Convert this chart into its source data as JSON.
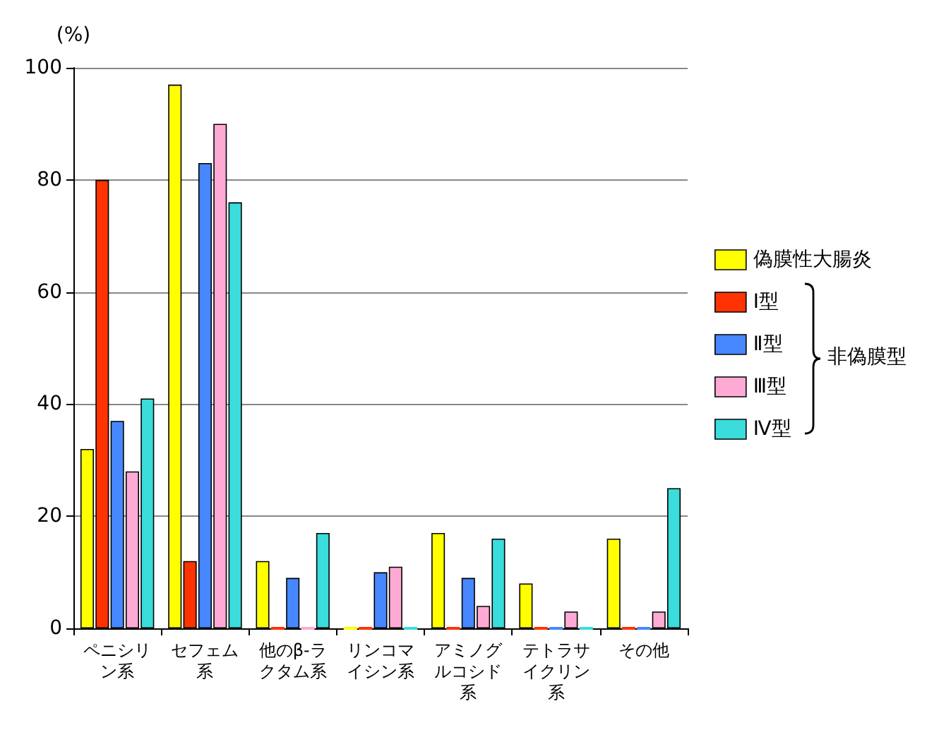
{
  "chart_data": {
    "type": "bar",
    "ylabel": "(%)",
    "categories": [
      "ペニシリン系",
      "セフェム系",
      "他のβ-ラクタム系",
      "リンコマイシン系",
      "アミノグルコシド系",
      "テトラサイクリン系",
      "その他"
    ],
    "series": [
      {
        "name": "偽膜性大腸炎",
        "color": "#ffff00",
        "values": [
          32,
          97,
          12,
          0,
          17,
          8,
          16
        ]
      },
      {
        "name": "Ⅰ型",
        "color": "#ff3300",
        "values": [
          80,
          12,
          0,
          0,
          0,
          0,
          0
        ]
      },
      {
        "name": "Ⅱ型",
        "color": "#4787ff",
        "values": [
          37,
          83,
          9,
          10,
          9,
          0,
          0
        ]
      },
      {
        "name": "Ⅲ型",
        "color": "#ffaad5",
        "values": [
          28,
          90,
          0,
          11,
          4,
          3,
          3
        ]
      },
      {
        "name": "Ⅳ型",
        "color": "#3adcdc",
        "values": [
          41,
          76,
          17,
          0,
          16,
          0,
          25
        ]
      }
    ],
    "ylim": [
      0,
      100
    ],
    "yticks": [
      0,
      20,
      40,
      60,
      80,
      100
    ],
    "grid": "y",
    "legend": "right",
    "annotations": [
      "非偽膜型"
    ]
  }
}
